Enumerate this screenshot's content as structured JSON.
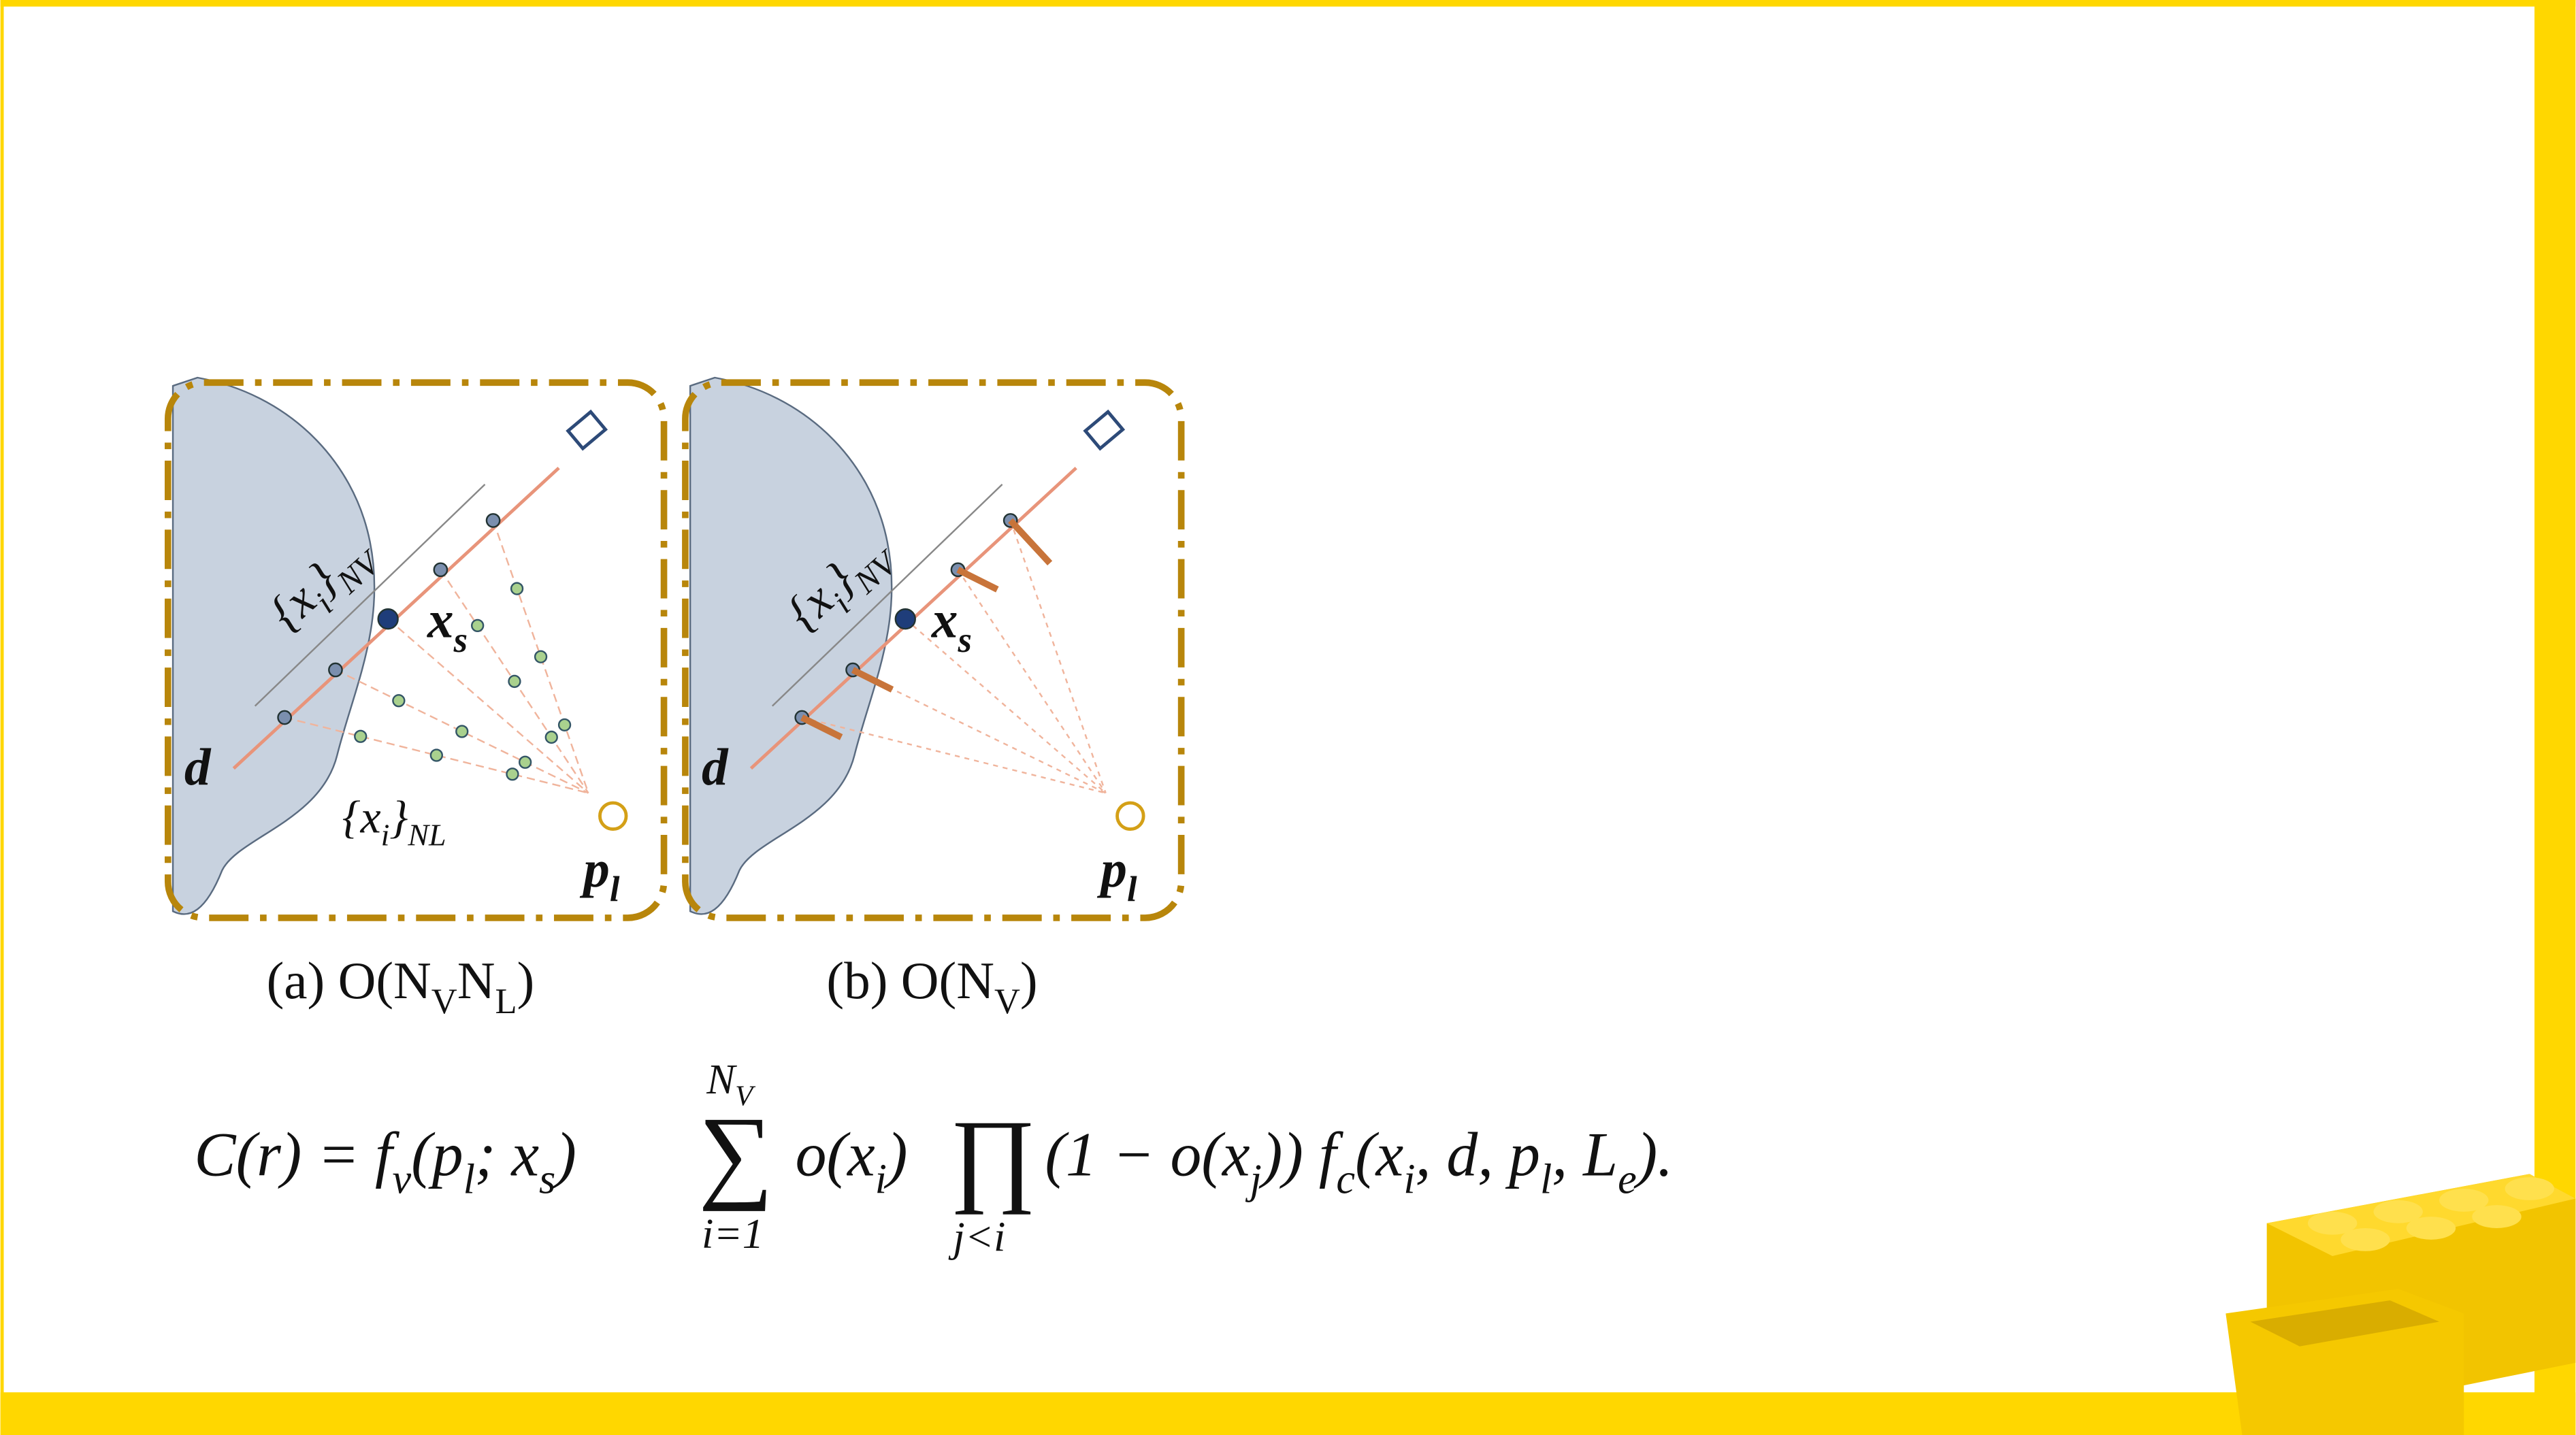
{
  "figure": {
    "panels": [
      {
        "ray_set": [
          "{x",
          "i",
          "}",
          "NV"
        ],
        "surface": [
          "x",
          "s"
        ],
        "direction": [
          "d"
        ],
        "light_set": [
          "{x",
          "i",
          "}",
          "NL"
        ],
        "light": [
          "p",
          "l"
        ]
      },
      {
        "ray_set": [
          "{x",
          "i",
          "}",
          "NV"
        ],
        "surface": [
          "x",
          "s"
        ],
        "direction": [
          "d"
        ],
        "light": [
          "p",
          "l"
        ]
      }
    ],
    "captions": [
      [
        "(a) O(N",
        "V",
        "N",
        "L",
        ")"
      ],
      [
        "(b) O(N",
        "V",
        ")"
      ]
    ]
  },
  "equation": {
    "lhs": [
      "C(r) = f",
      "v",
      "(p",
      "l",
      "; x",
      "s",
      ")"
    ],
    "sum_symbol": "∑",
    "sum_upper": [
      "N",
      "V"
    ],
    "sum_lower": [
      "i=1"
    ],
    "middle": [
      "o(x",
      "i",
      ")"
    ],
    "prod_symbol": "∏",
    "prod_lower": [
      "j<i"
    ],
    "rhs": [
      "(1 − o(x",
      "j",
      ")) f",
      "c",
      "(x",
      "i",
      ", d, p",
      "l",
      ", L",
      "e",
      ")."
    ]
  }
}
